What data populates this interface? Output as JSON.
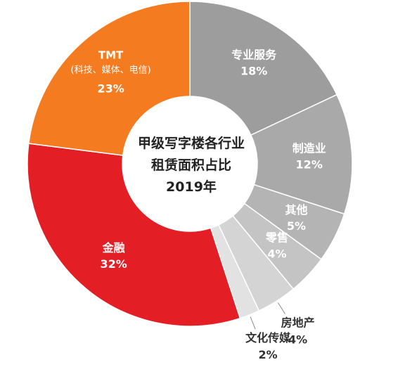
{
  "chart_data": {
    "type": "pie",
    "title_lines": [
      "甲级写字楼各行业",
      "租赁面积占比",
      "2019年"
    ],
    "slices": [
      {
        "name": "专业服务",
        "value_label": "18%",
        "value": 18,
        "color": "#9d9d9d",
        "outside": false
      },
      {
        "name": "制造业",
        "value_label": "12%",
        "value": 12,
        "color": "#a9a9a9",
        "outside": false
      },
      {
        "name": "其他",
        "value_label": "5%",
        "value": 5,
        "color": "#b4b4b4",
        "outside": false
      },
      {
        "name": "零售",
        "value_label": "4%",
        "value": 4,
        "color": "#c4c4c4",
        "outside": false
      },
      {
        "name": "房地产",
        "value_label": "4%",
        "value": 4,
        "color": "#d4d4d4",
        "outside": true
      },
      {
        "name": "文化传媒",
        "value_label": "2%",
        "value": 2,
        "color": "#e2e2e2",
        "outside": true
      },
      {
        "name": "金融",
        "value_label": "32%",
        "value": 32,
        "color": "#e31e24",
        "outside": false
      },
      {
        "name": "TMT",
        "subtitle": "(科技、媒体、电信)",
        "value_label": "23%",
        "value": 23,
        "color": "#f47b20",
        "outside": false
      }
    ]
  }
}
